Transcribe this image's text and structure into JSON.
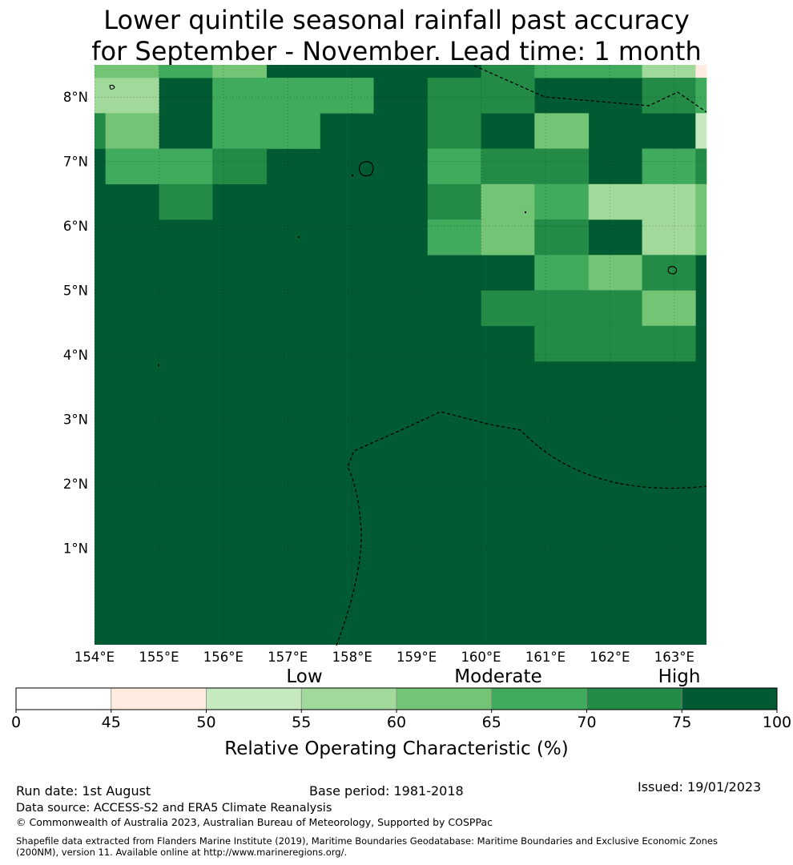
{
  "title_line1": "Lower quintile seasonal rainfall past accuracy",
  "title_line2": "for September - November. Lead time: 1 month",
  "map": {
    "lon_range": [
      154.0,
      163.5
    ],
    "lat_range": [
      -0.5,
      8.5
    ],
    "lon_ticks": [
      {
        "value": 154,
        "label": "154°E"
      },
      {
        "value": 155,
        "label": "155°E"
      },
      {
        "value": 156,
        "label": "156°E"
      },
      {
        "value": 157,
        "label": "157°E"
      },
      {
        "value": 158,
        "label": "158°E"
      },
      {
        "value": 159,
        "label": "159°E"
      },
      {
        "value": 160,
        "label": "160°E"
      },
      {
        "value": 161,
        "label": "161°E"
      },
      {
        "value": 162,
        "label": "162°E"
      },
      {
        "value": 163,
        "label": "163°E"
      }
    ],
    "lat_ticks": [
      {
        "value": 8,
        "label": "8°N"
      },
      {
        "value": 7,
        "label": "7°N"
      },
      {
        "value": 6,
        "label": "6°N"
      },
      {
        "value": 5,
        "label": "5°N"
      },
      {
        "value": 4,
        "label": "4°N"
      },
      {
        "value": 3,
        "label": "3°N"
      },
      {
        "value": 2,
        "label": "2°N"
      },
      {
        "value": 1,
        "label": "1°N"
      }
    ],
    "background_class": 7,
    "cells": [
      {
        "lon": [
          154.0,
          155.0
        ],
        "lat": [
          8.3,
          8.5
        ],
        "c": 4
      },
      {
        "lon": [
          155.0,
          155.83
        ],
        "lat": [
          8.3,
          8.5
        ],
        "c": 5
      },
      {
        "lon": [
          155.83,
          156.67
        ],
        "lat": [
          8.3,
          8.5
        ],
        "c": 4
      },
      {
        "lon": [
          159.17,
          160.0
        ],
        "lat": [
          8.3,
          8.5
        ],
        "c": 7
      },
      {
        "lon": [
          160.0,
          160.83
        ],
        "lat": [
          8.3,
          8.5
        ],
        "c": 6
      },
      {
        "lon": [
          160.83,
          161.67
        ],
        "lat": [
          8.3,
          8.5
        ],
        "c": 5
      },
      {
        "lon": [
          161.67,
          162.5
        ],
        "lat": [
          8.3,
          8.5
        ],
        "c": 5
      },
      {
        "lon": [
          162.5,
          163.33
        ],
        "lat": [
          8.3,
          8.5
        ],
        "c": 3
      },
      {
        "lon": [
          163.33,
          163.5
        ],
        "lat": [
          8.3,
          8.5
        ],
        "c": 1
      },
      {
        "lon": [
          154.0,
          155.0
        ],
        "lat": [
          7.75,
          8.3
        ],
        "c": 3
      },
      {
        "lon": [
          156.67,
          158.33
        ],
        "lat": [
          7.75,
          8.3
        ],
        "c": 5
      },
      {
        "lon": [
          155.83,
          156.67
        ],
        "lat": [
          7.75,
          8.3
        ],
        "c": 5
      },
      {
        "lon": [
          159.17,
          160.0
        ],
        "lat": [
          7.75,
          8.3
        ],
        "c": 6
      },
      {
        "lon": [
          160.0,
          160.83
        ],
        "lat": [
          7.75,
          8.3
        ],
        "c": 6
      },
      {
        "lon": [
          162.5,
          163.33
        ],
        "lat": [
          7.75,
          8.3
        ],
        "c": 6
      },
      {
        "lon": [
          163.33,
          163.5
        ],
        "lat": [
          7.75,
          8.3
        ],
        "c": 5
      },
      {
        "lon": [
          154.0,
          154.17
        ],
        "lat": [
          7.2,
          7.75
        ],
        "c": 6
      },
      {
        "lon": [
          154.17,
          155.0
        ],
        "lat": [
          7.2,
          7.75
        ],
        "c": 4
      },
      {
        "lon": [
          155.83,
          157.5
        ],
        "lat": [
          7.2,
          7.75
        ],
        "c": 5
      },
      {
        "lon": [
          159.17,
          160.0
        ],
        "lat": [
          7.2,
          7.75
        ],
        "c": 6
      },
      {
        "lon": [
          160.83,
          161.67
        ],
        "lat": [
          7.2,
          7.75
        ],
        "c": 4
      },
      {
        "lon": [
          163.33,
          163.5
        ],
        "lat": [
          7.2,
          7.75
        ],
        "c": 2
      },
      {
        "lon": [
          154.17,
          155.83
        ],
        "lat": [
          6.65,
          7.2
        ],
        "c": 5
      },
      {
        "lon": [
          155.83,
          156.67
        ],
        "lat": [
          6.65,
          7.2
        ],
        "c": 6
      },
      {
        "lon": [
          159.17,
          160.0
        ],
        "lat": [
          6.65,
          7.2
        ],
        "c": 5
      },
      {
        "lon": [
          160.0,
          161.67
        ],
        "lat": [
          6.65,
          7.2
        ],
        "c": 6
      },
      {
        "lon": [
          162.5,
          163.33
        ],
        "lat": [
          6.65,
          7.2
        ],
        "c": 5
      },
      {
        "lon": [
          163.33,
          163.5
        ],
        "lat": [
          6.65,
          7.2
        ],
        "c": 6
      },
      {
        "lon": [
          155.0,
          155.83
        ],
        "lat": [
          6.1,
          6.65
        ],
        "c": 6
      },
      {
        "lon": [
          159.17,
          160.0
        ],
        "lat": [
          6.1,
          6.65
        ],
        "c": 6
      },
      {
        "lon": [
          160.0,
          160.83
        ],
        "lat": [
          6.1,
          6.65
        ],
        "c": 4
      },
      {
        "lon": [
          160.83,
          161.67
        ],
        "lat": [
          6.1,
          6.65
        ],
        "c": 5
      },
      {
        "lon": [
          161.67,
          163.33
        ],
        "lat": [
          6.1,
          6.65
        ],
        "c": 3
      },
      {
        "lon": [
          163.33,
          163.5
        ],
        "lat": [
          6.1,
          6.65
        ],
        "c": 4
      },
      {
        "lon": [
          159.17,
          160.0
        ],
        "lat": [
          5.55,
          6.1
        ],
        "c": 5
      },
      {
        "lon": [
          160.0,
          160.83
        ],
        "lat": [
          5.55,
          6.1
        ],
        "c": 4
      },
      {
        "lon": [
          160.83,
          161.67
        ],
        "lat": [
          5.55,
          6.1
        ],
        "c": 6
      },
      {
        "lon": [
          162.5,
          163.33
        ],
        "lat": [
          5.55,
          6.1
        ],
        "c": 3
      },
      {
        "lon": [
          163.33,
          163.5
        ],
        "lat": [
          5.55,
          6.1
        ],
        "c": 4
      },
      {
        "lon": [
          160.83,
          161.67
        ],
        "lat": [
          5.0,
          5.55
        ],
        "c": 5
      },
      {
        "lon": [
          161.67,
          162.5
        ],
        "lat": [
          5.0,
          5.55
        ],
        "c": 4
      },
      {
        "lon": [
          162.5,
          163.33
        ],
        "lat": [
          5.0,
          5.55
        ],
        "c": 6
      },
      {
        "lon": [
          160.0,
          162.5
        ],
        "lat": [
          4.45,
          5.0
        ],
        "c": 6
      },
      {
        "lon": [
          162.5,
          163.33
        ],
        "lat": [
          4.45,
          5.0
        ],
        "c": 4
      },
      {
        "lon": [
          160.83,
          163.33
        ],
        "lat": [
          3.9,
          4.45
        ],
        "c": 6
      }
    ]
  },
  "colorbar": {
    "category_labels": [
      "Low",
      "Moderate",
      "High"
    ],
    "boundaries": [
      0,
      45,
      50,
      55,
      60,
      65,
      70,
      75,
      100
    ],
    "colors": [
      "#ffffff",
      "#ffebe0",
      "#c7e9c0",
      "#a1d99b",
      "#74c476",
      "#41ab5d",
      "#238b45",
      "#005a32"
    ],
    "tick_labels": [
      "0",
      "45",
      "50",
      "55",
      "60",
      "65",
      "70",
      "75",
      "100"
    ],
    "axis_label": "Relative Operating Characteristic (%)"
  },
  "footer": {
    "run_date": "Run date: 1st August",
    "base_period": "Base period: 1981-2018",
    "issued": "Issued: 19/01/2023",
    "data_source": "Data source: ACCESS-S2 and ERA5 Climate Reanalysis",
    "copyright": "© Commonwealth of Australia 2023, Australian Bureau of Meteorology, Supported by COSPPac",
    "shapefile_line1": "Shapefile data extracted from Flanders Marine Institute (2019), Maritime Boundaries Geodatabase: Maritime Boundaries and Exclusive Economic Zones",
    "shapefile_line2": "(200NM), version 11. Available online at http://www.marineregions.org/."
  }
}
